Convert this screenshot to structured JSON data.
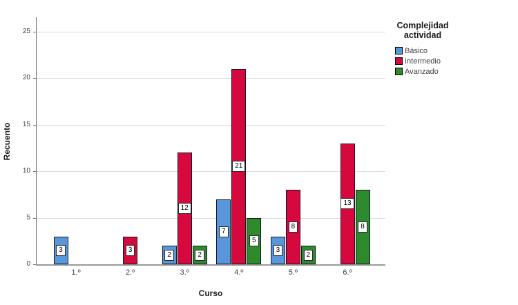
{
  "chart_data": {
    "type": "bar",
    "title": "",
    "xlabel": "Curso",
    "ylabel": "Recuento",
    "legend_title": "Complejidad actividad",
    "legend_position": "top-right",
    "categories": [
      "1.º",
      "2.º",
      "3.º",
      "4.º",
      "5.º",
      "6.º"
    ],
    "series": [
      {
        "name": "Básico",
        "slug": "basico",
        "color": "#5897DB",
        "values": [
          3,
          null,
          2,
          7,
          3,
          null
        ]
      },
      {
        "name": "Intermedio",
        "slug": "intermedio",
        "color": "#D6093E",
        "values": [
          null,
          3,
          12,
          21,
          8,
          13
        ]
      },
      {
        "name": "Avanzado",
        "slug": "avanzado",
        "color": "#2E8B2D",
        "values": [
          null,
          null,
          2,
          5,
          2,
          8
        ]
      }
    ],
    "yticks": [
      0,
      5,
      10,
      15,
      20,
      25
    ],
    "ylim": [
      0,
      26.5
    ],
    "grid": "horizontal",
    "bar_value_labels": true
  }
}
